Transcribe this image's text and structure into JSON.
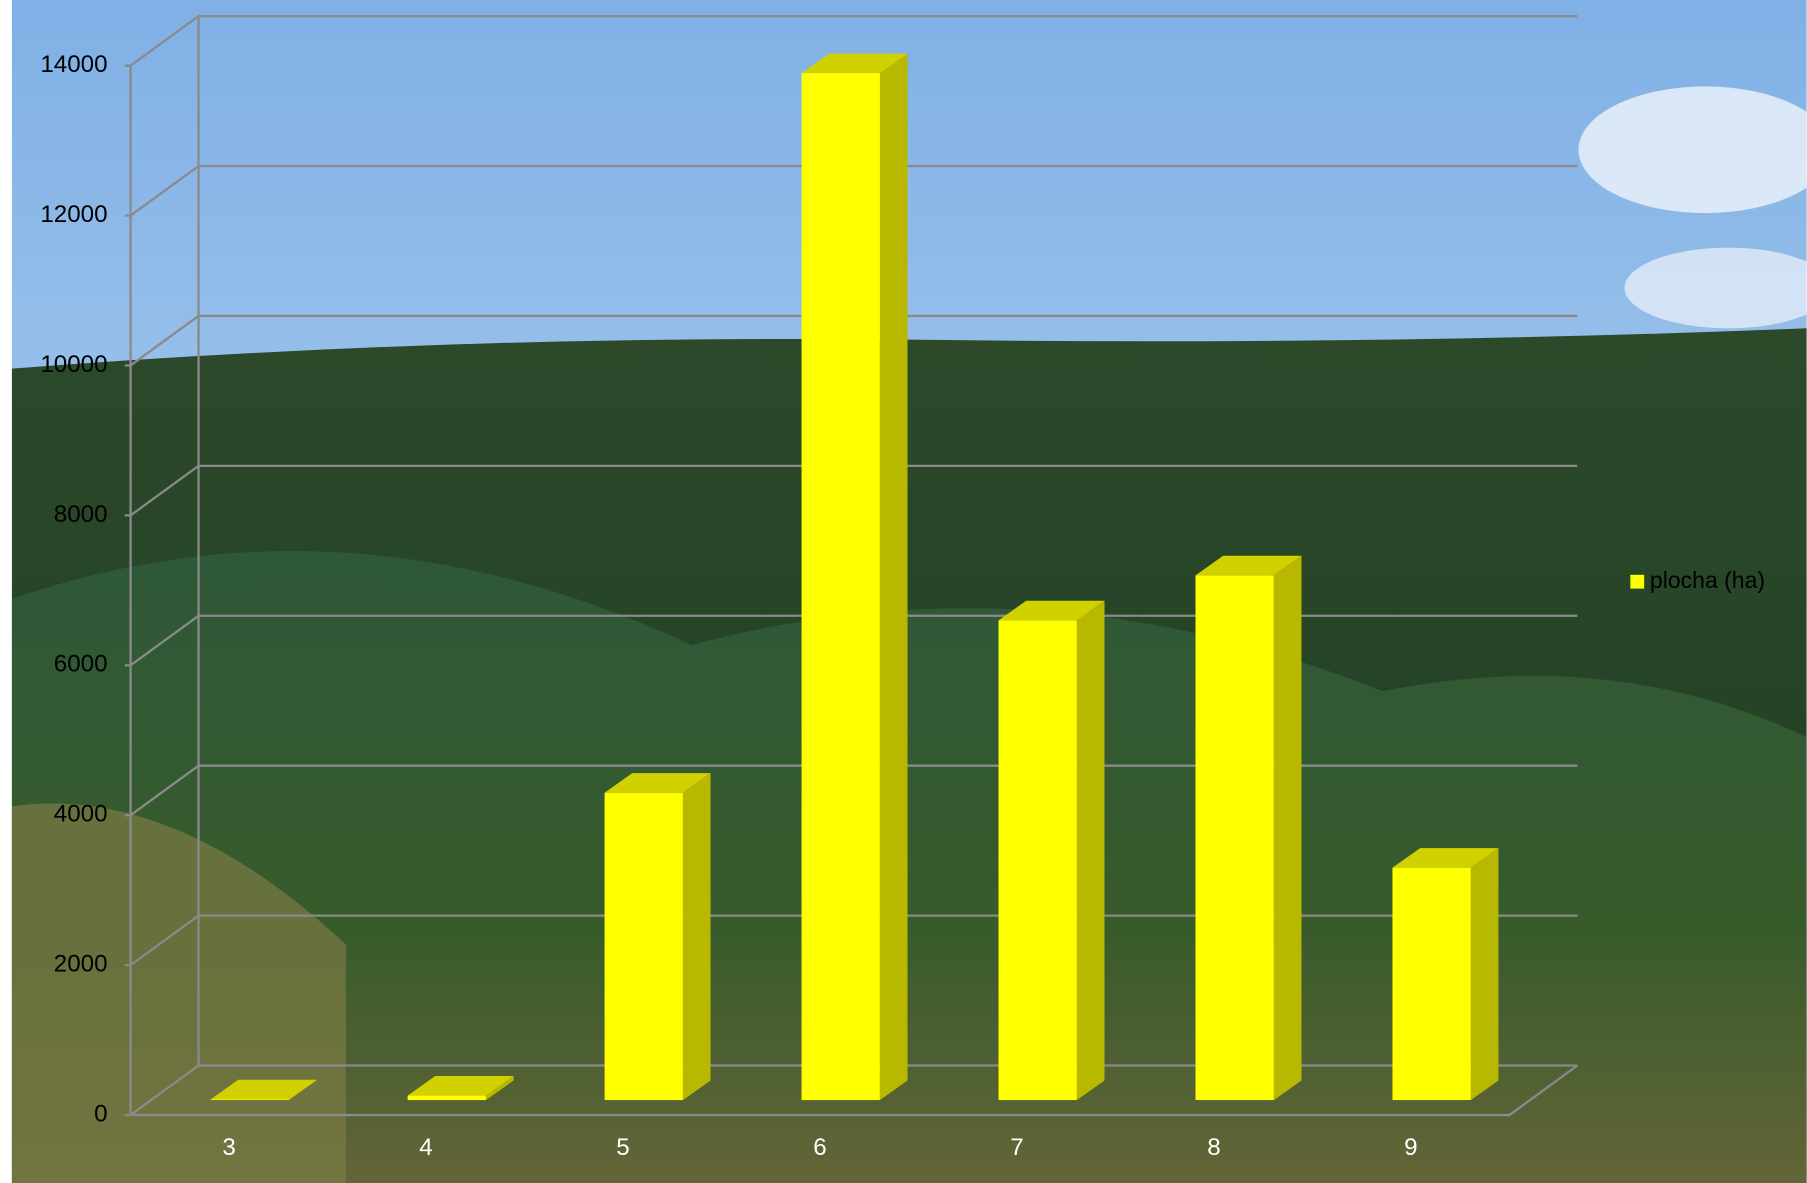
{
  "chart_data": {
    "type": "bar",
    "categories": [
      "3",
      "4",
      "5",
      "6",
      "7",
      "8",
      "9"
    ],
    "series": [
      {
        "name": "plocha (ha)",
        "color": "#ffff00",
        "values": [
          10,
          60,
          4100,
          13700,
          6400,
          7000,
          3100
        ]
      }
    ],
    "ylim": [
      0,
      14000
    ],
    "yticks": [
      0,
      2000,
      4000,
      6000,
      8000,
      10000,
      12000,
      14000
    ],
    "grid": true,
    "legend": "right"
  }
}
